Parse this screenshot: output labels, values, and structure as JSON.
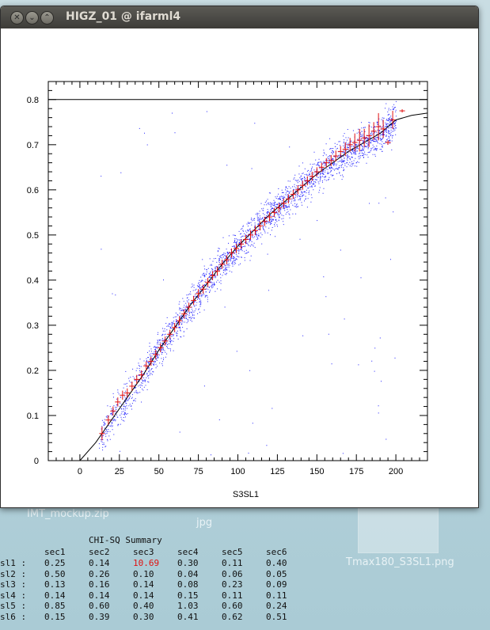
{
  "window": {
    "title": "HIGZ_01 @ ifarml4",
    "buttons": [
      "close",
      "minimize",
      "maximize"
    ]
  },
  "desktop": {
    "items": [
      {
        "label": "IMT_mockup.zip"
      },
      {
        "label": "jpg"
      },
      {
        "label": "Tmax180_S3SL1.png"
      }
    ]
  },
  "chart_data": {
    "type": "scatter",
    "xlabel": "S3SL1",
    "ylabel": "",
    "xlim": [
      -20,
      220
    ],
    "ylim": [
      0,
      0.84
    ],
    "x_ticks": [
      0,
      25,
      50,
      75,
      100,
      125,
      150,
      175,
      200
    ],
    "y_ticks": [
      0,
      0.1,
      0.2,
      0.3,
      0.4,
      0.5,
      0.6,
      0.7,
      0.8
    ],
    "x_tick_labels": [
      "0",
      "25",
      "50",
      "75",
      "100",
      "125",
      "150",
      "175",
      "200"
    ],
    "y_tick_labels": [
      "0",
      "0.1",
      "0.2",
      "0.3",
      "0.4",
      "0.5",
      "0.6",
      "0.7",
      "0.8"
    ],
    "horizontal_line": 0.8,
    "fit_curve": {
      "x": [
        0,
        10,
        20,
        30,
        40,
        50,
        60,
        70,
        80,
        90,
        100,
        110,
        120,
        130,
        140,
        150,
        160,
        170,
        180,
        190,
        200,
        210,
        220
      ],
      "y": [
        0.0,
        0.04,
        0.09,
        0.14,
        0.19,
        0.245,
        0.295,
        0.345,
        0.39,
        0.435,
        0.475,
        0.51,
        0.545,
        0.575,
        0.605,
        0.635,
        0.66,
        0.685,
        0.705,
        0.725,
        0.755,
        0.765,
        0.77
      ]
    },
    "profile_points": {
      "x": [
        14,
        18,
        21,
        24,
        27,
        30,
        33,
        36,
        39,
        42,
        45,
        48,
        51,
        54,
        57,
        60,
        63,
        66,
        69,
        72,
        75,
        78,
        81,
        84,
        87,
        90,
        93,
        96,
        99,
        102,
        105,
        108,
        111,
        114,
        117,
        120,
        123,
        126,
        129,
        132,
        135,
        138,
        141,
        144,
        147,
        150,
        153,
        156,
        159,
        162,
        165,
        168,
        171,
        174,
        177,
        180,
        183,
        186,
        189,
        192,
        195,
        198,
        204
      ],
      "y": [
        0.06,
        0.09,
        0.11,
        0.13,
        0.145,
        0.15,
        0.165,
        0.18,
        0.19,
        0.21,
        0.22,
        0.235,
        0.25,
        0.265,
        0.28,
        0.295,
        0.31,
        0.325,
        0.34,
        0.355,
        0.37,
        0.38,
        0.395,
        0.41,
        0.42,
        0.435,
        0.445,
        0.46,
        0.47,
        0.48,
        0.49,
        0.5,
        0.51,
        0.52,
        0.53,
        0.54,
        0.55,
        0.56,
        0.57,
        0.58,
        0.59,
        0.6,
        0.61,
        0.62,
        0.63,
        0.64,
        0.65,
        0.66,
        0.665,
        0.675,
        0.685,
        0.69,
        0.7,
        0.705,
        0.71,
        0.715,
        0.72,
        0.73,
        0.74,
        0.735,
        0.705,
        0.755,
        0.775
      ],
      "err": [
        0.015,
        0.01,
        0.01,
        0.01,
        0.01,
        0.01,
        0.01,
        0.01,
        0.01,
        0.01,
        0.01,
        0.01,
        0.01,
        0.01,
        0.01,
        0.01,
        0.01,
        0.01,
        0.01,
        0.01,
        0.01,
        0.01,
        0.01,
        0.01,
        0.01,
        0.01,
        0.01,
        0.01,
        0.01,
        0.01,
        0.01,
        0.01,
        0.01,
        0.01,
        0.01,
        0.01,
        0.01,
        0.01,
        0.01,
        0.01,
        0.01,
        0.01,
        0.01,
        0.01,
        0.01,
        0.01,
        0.01,
        0.01,
        0.012,
        0.012,
        0.012,
        0.015,
        0.015,
        0.02,
        0.025,
        0.02,
        0.025,
        0.02,
        0.03,
        0.02,
        0.005,
        0.02,
        0.002
      ]
    },
    "scatter_density": "blue points distributed along fit curve",
    "colors": {
      "scatter": "#2020ff",
      "profile": "#e01010",
      "curve": "#000000"
    }
  },
  "summary": {
    "title": "CHI-SQ Summary",
    "columns": [
      "sec1",
      "sec2",
      "sec3",
      "sec4",
      "sec5",
      "sec6"
    ],
    "rows": [
      {
        "label": "sl1 :",
        "values": [
          "0.25",
          "0.14",
          "10.69",
          "0.30",
          "0.11",
          "0.40"
        ]
      },
      {
        "label": "sl2 :",
        "values": [
          "0.50",
          "0.26",
          "0.10",
          "0.04",
          "0.06",
          "0.05"
        ]
      },
      {
        "label": "sl3 :",
        "values": [
          "0.13",
          "0.16",
          "0.14",
          "0.08",
          "0.23",
          "0.09"
        ]
      },
      {
        "label": "sl4 :",
        "values": [
          "0.14",
          "0.14",
          "0.14",
          "0.15",
          "0.11",
          "0.11"
        ]
      },
      {
        "label": "sl5 :",
        "values": [
          "0.85",
          "0.60",
          "0.40",
          "1.03",
          "0.60",
          "0.24"
        ]
      },
      {
        "label": "sl6 :",
        "values": [
          "0.15",
          "0.39",
          "0.30",
          "0.41",
          "0.62",
          "0.51"
        ]
      }
    ],
    "highlight": {
      "row": 0,
      "col": 2,
      "color": "#e01010"
    }
  }
}
